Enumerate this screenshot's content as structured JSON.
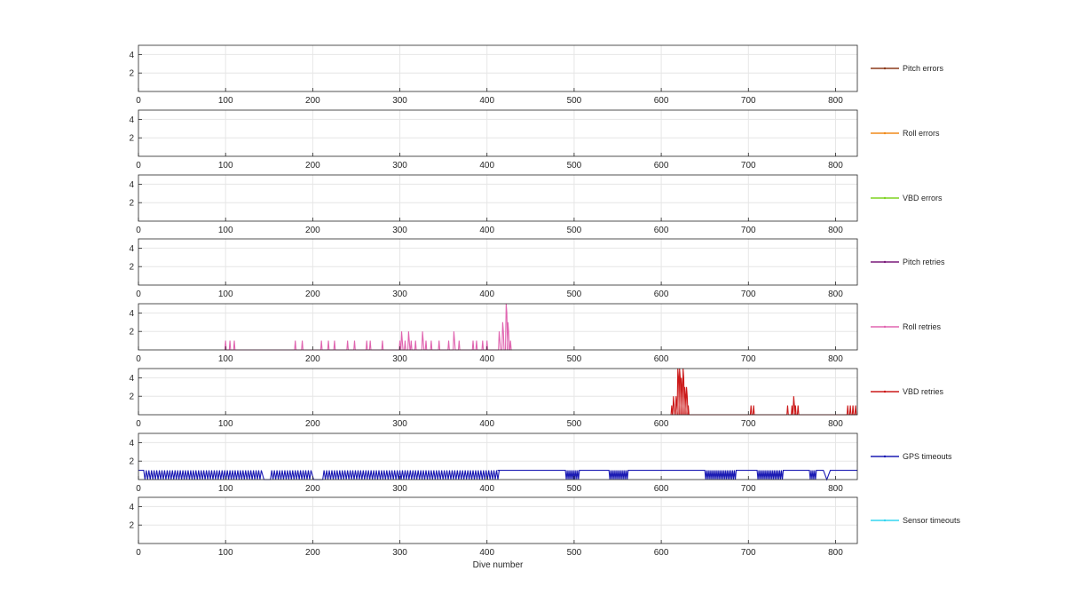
{
  "chart_data": {
    "type": "line",
    "layout": "stacked-subplots",
    "xlabel": "Dive number",
    "xlim": [
      0,
      825
    ],
    "ylim": [
      0,
      5
    ],
    "x_ticks": [
      0,
      100,
      200,
      300,
      400,
      500,
      600,
      700,
      800
    ],
    "y_ticks": [
      2,
      4
    ],
    "grid": true,
    "legend_placement": "right of each subplot",
    "panels": [
      {
        "series": "Pitch errors",
        "color": "#8b3a1a",
        "points": []
      },
      {
        "series": "Roll errors",
        "color": "#f08a1a",
        "points": []
      },
      {
        "series": "VBD errors",
        "color": "#7ed321",
        "points": []
      },
      {
        "series": "Pitch retries",
        "color": "#7a1a7a",
        "points": []
      },
      {
        "series": "Roll retries",
        "color": "#e065b0",
        "points": [
          [
            100,
            1
          ],
          [
            105,
            1
          ],
          [
            110,
            1
          ],
          [
            180,
            1
          ],
          [
            188,
            1
          ],
          [
            210,
            1
          ],
          [
            218,
            1
          ],
          [
            225,
            1
          ],
          [
            240,
            1
          ],
          [
            248,
            1
          ],
          [
            262,
            1
          ],
          [
            266,
            1
          ],
          [
            280,
            1
          ],
          [
            300,
            1
          ],
          [
            302,
            2
          ],
          [
            306,
            1
          ],
          [
            310,
            2
          ],
          [
            313,
            1
          ],
          [
            318,
            1
          ],
          [
            326,
            2
          ],
          [
            330,
            1
          ],
          [
            336,
            1
          ],
          [
            345,
            1
          ],
          [
            356,
            1
          ],
          [
            362,
            2
          ],
          [
            368,
            1
          ],
          [
            384,
            1
          ],
          [
            388,
            1
          ],
          [
            395,
            1
          ],
          [
            400,
            1
          ],
          [
            414,
            2
          ],
          [
            418,
            3
          ],
          [
            422,
            5
          ],
          [
            424,
            3
          ],
          [
            427,
            1
          ]
        ]
      },
      {
        "series": "VBD retries",
        "color": "#cc1a1a",
        "points": [
          [
            612,
            1
          ],
          [
            614,
            2
          ],
          [
            617,
            2
          ],
          [
            619,
            5
          ],
          [
            621,
            5
          ],
          [
            623,
            4
          ],
          [
            625,
            5
          ],
          [
            627,
            3
          ],
          [
            629,
            3
          ],
          [
            631,
            1
          ],
          [
            703,
            1
          ],
          [
            706,
            1
          ],
          [
            745,
            1
          ],
          [
            750,
            1
          ],
          [
            752,
            2
          ],
          [
            754,
            1
          ],
          [
            757,
            1
          ],
          [
            814,
            1
          ],
          [
            817,
            1
          ],
          [
            820,
            1
          ],
          [
            823,
            1
          ]
        ]
      },
      {
        "series": "GPS timeouts",
        "color": "#1a1ab3",
        "points": [
          [
            0,
            1
          ],
          [
            412,
            1
          ],
          [
            490,
            1
          ],
          [
            540,
            1
          ],
          [
            562,
            1
          ],
          [
            650,
            1
          ],
          [
            686,
            1
          ],
          [
            710,
            1
          ],
          [
            740,
            1
          ],
          [
            770,
            1
          ],
          [
            794,
            1
          ],
          [
            825,
            1
          ]
        ]
      },
      {
        "series": "Sensor timeouts",
        "color": "#33d6f0",
        "points": []
      }
    ]
  }
}
